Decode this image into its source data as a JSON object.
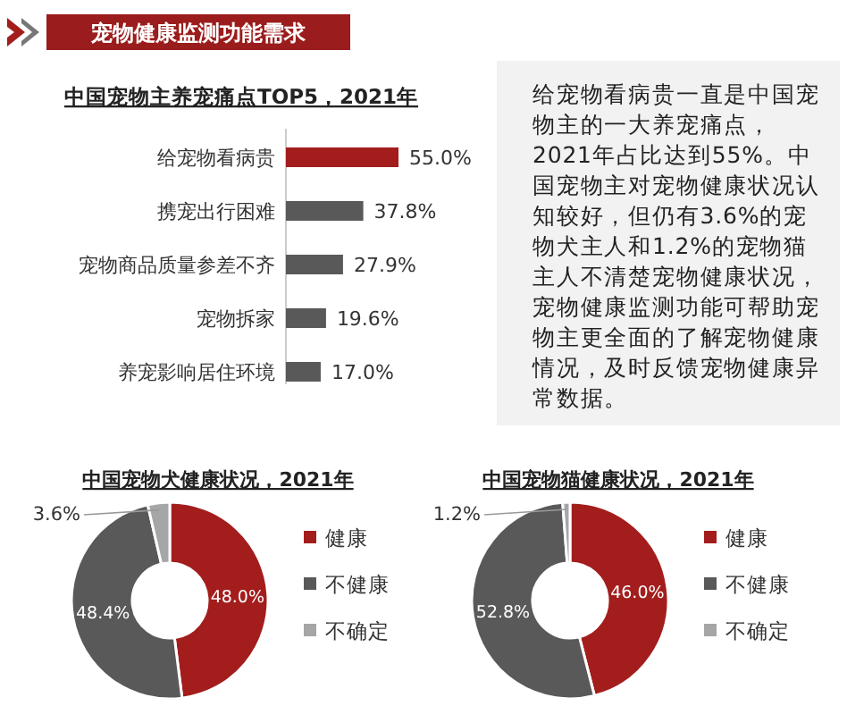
{
  "chart_data": [
    {
      "type": "bar",
      "orientation": "horizontal",
      "title": "宠物健康监测功能需求",
      "subtitle": "中国宠物主养宠痛点TOP5，2021年",
      "categories": [
        "给宠物看病贵",
        "携宠出行困难",
        "宠物商品质量参差不齐",
        "宠物拆家",
        "养宠影响居住环境"
      ],
      "values": [
        55.0,
        37.8,
        27.9,
        19.6,
        17.0
      ],
      "colors": [
        "#a31d1d",
        "#595959",
        "#595959",
        "#595959",
        "#595959"
      ],
      "value_labels": [
        "55.0%",
        "37.8%",
        "27.9%",
        "19.6%",
        "17.0%"
      ]
    },
    {
      "type": "other",
      "annotations": [
        "给宠物看病贵一直是中国宠物主的一大养宠痛点，2021年占比达到55%。中国宠物主对宠物健康状况认知较好，但仍有3.6%的宠物犬主人和1.2%的宠物猫主人不清楚宠物健康状况，宠物健康监测功能可帮助宠物主更全面的了解宠物健康情况，及时反馈宠物健康异常数据。"
      ]
    },
    {
      "type": "donut",
      "title": "中国宠物犬健康状况，2021年",
      "categories": [
        "健康",
        "不健康",
        "不确定"
      ],
      "values": [
        48.0,
        48.4,
        3.6
      ],
      "colors": [
        "#a31d1d",
        "#595959",
        "#a6a6a6"
      ],
      "value_labels": [
        "48.0%",
        "48.4%",
        "3.6%"
      ],
      "legend": "right"
    },
    {
      "type": "donut",
      "title": "中国宠物猫健康状况，2021年",
      "categories": [
        "健康",
        "不健康",
        "不确定"
      ],
      "values": [
        46.0,
        52.8,
        1.2
      ],
      "colors": [
        "#a31d1d",
        "#595959",
        "#a6a6a6"
      ],
      "value_labels": [
        "46.0%",
        "52.8%",
        "1.2%"
      ],
      "legend": "right"
    }
  ]
}
